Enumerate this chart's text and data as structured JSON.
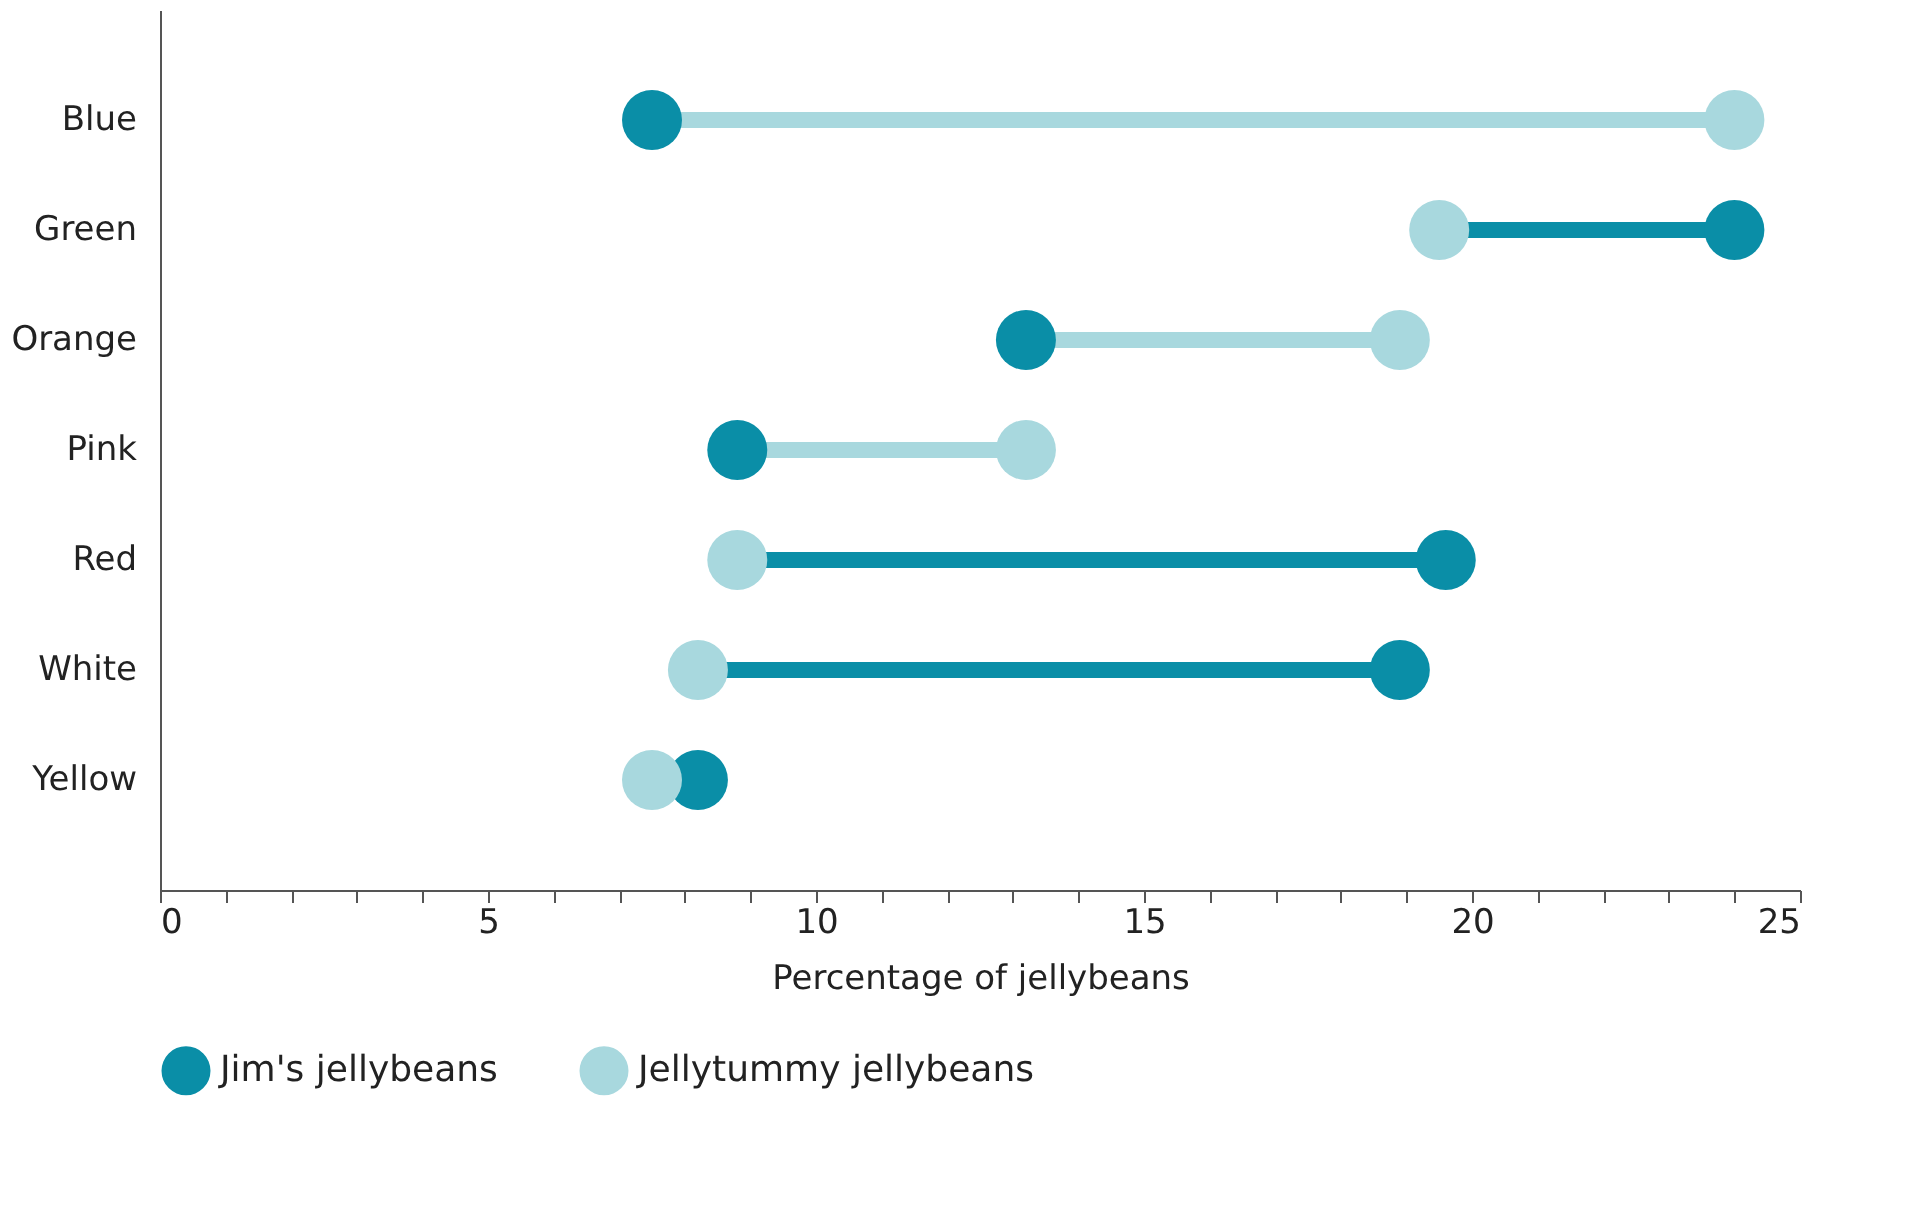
{
  "chart_data": {
    "type": "scatter",
    "xlabel": "Percentage of jellybeans",
    "categories": [
      "Blue",
      "Green",
      "Orange",
      "Pink",
      "Red",
      "White",
      "Yellow"
    ],
    "series": [
      {
        "name": "Jim's jellybeans",
        "color": "#0a8ea7",
        "values": [
          7.5,
          24,
          13.2,
          8.8,
          19.6,
          18.9,
          8.2
        ]
      },
      {
        "name": "Jellytummy jellybeans",
        "color": "#a8d8de",
        "values": [
          24,
          19.5,
          18.9,
          13.2,
          8.8,
          8.2,
          7.5
        ]
      }
    ],
    "xlim": [
      0,
      25
    ],
    "xticks": [
      0,
      {
        "value": 1,
        "label": null
      },
      {
        "value": 2,
        "label": null
      },
      {
        "value": 3,
        "label": null
      },
      {
        "value": 4,
        "label": null
      },
      5,
      {
        "value": 6,
        "label": null
      },
      {
        "value": 7,
        "label": null
      },
      {
        "value": 8,
        "label": null
      },
      {
        "value": 9,
        "label": null
      },
      10,
      {
        "value": 11,
        "label": null
      },
      {
        "value": 12,
        "label": null
      },
      {
        "value": 13,
        "label": null
      },
      {
        "value": 14,
        "label": null
      },
      15,
      {
        "value": 16,
        "label": null
      },
      {
        "value": 17,
        "label": null
      },
      {
        "value": 18,
        "label": null
      },
      {
        "value": 19,
        "label": null
      },
      20,
      {
        "value": 21,
        "label": null
      },
      {
        "value": 22,
        "label": null
      },
      {
        "value": 23,
        "label": null
      },
      {
        "value": 24,
        "label": null
      },
      25
    ],
    "orientation": "horizontal",
    "marker": "circle",
    "grid": false,
    "legend": "bottom"
  }
}
